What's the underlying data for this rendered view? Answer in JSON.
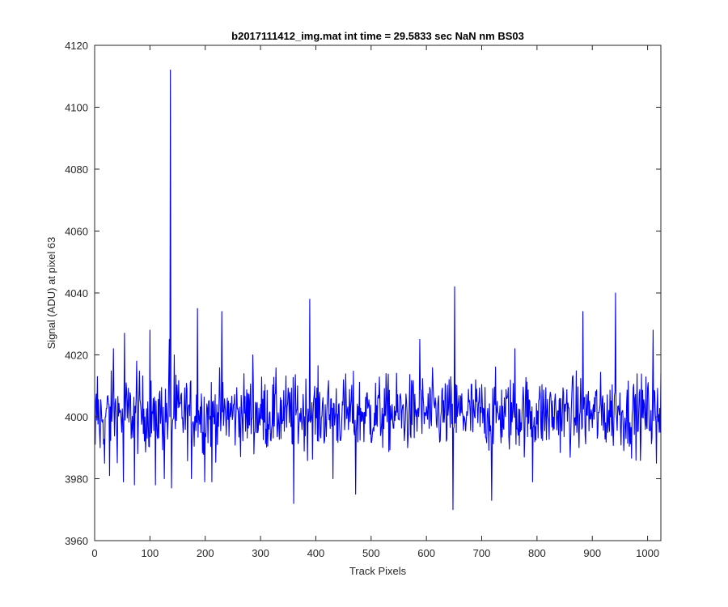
{
  "chart_data": {
    "type": "line",
    "title": "b2017111412_img.mat int time = 29.5833 sec  NaN nm BS03",
    "xlabel": "Track Pixels",
    "ylabel": "Signal (ADU) at pixel 63",
    "xlim": [
      0,
      1024
    ],
    "ylim": [
      3960,
      4120
    ],
    "xticks": [
      0,
      100,
      200,
      300,
      400,
      500,
      600,
      700,
      800,
      900,
      1000
    ],
    "yticks": [
      3960,
      3980,
      4000,
      4020,
      4040,
      4060,
      4080,
      4100,
      4120
    ],
    "xtick_labels": [
      "0",
      "100",
      "200",
      "300",
      "400",
      "500",
      "600",
      "700",
      "800",
      "900",
      "1000"
    ],
    "ytick_labels": [
      "3960",
      "3980",
      "4000",
      "4020",
      "4040",
      "4060",
      "4080",
      "4100",
      "4120"
    ],
    "grid": false,
    "box": true,
    "line_color": "#0000ff",
    "series": [
      {
        "x_start": 1,
        "x_step": 1,
        "baseline": 4001,
        "noise_amplitude": 8,
        "values_note_points": [
          [
            1,
            3991
          ],
          [
            5,
            4013
          ],
          [
            10,
            3990
          ],
          [
            18,
            3985
          ],
          [
            27,
            3981
          ],
          [
            34,
            4022
          ],
          [
            52,
            3979
          ],
          [
            54,
            4027
          ],
          [
            72,
            3978
          ],
          [
            76,
            4018
          ],
          [
            100,
            4028
          ],
          [
            110,
            3978
          ],
          [
            126,
            3980
          ],
          [
            135,
            4025
          ],
          [
            137,
            4112
          ],
          [
            139,
            3977
          ],
          [
            144,
            4020
          ],
          [
            175,
            3980
          ],
          [
            186,
            4035
          ],
          [
            199,
            3979
          ],
          [
            212,
            3979
          ],
          [
            230,
            4034
          ],
          [
            286,
            4020
          ],
          [
            360,
            3972
          ],
          [
            389,
            4038
          ],
          [
            431,
            3980
          ],
          [
            472,
            3975
          ],
          [
            588,
            4025
          ],
          [
            648,
            3970
          ],
          [
            651,
            4042
          ],
          [
            718,
            3973
          ],
          [
            760,
            4022
          ],
          [
            792,
            3979
          ],
          [
            883,
            4034
          ],
          [
            942,
            4040
          ],
          [
            1010,
            4028
          ],
          [
            1016,
            3985
          ],
          [
            1024,
            4014
          ]
        ]
      }
    ]
  }
}
